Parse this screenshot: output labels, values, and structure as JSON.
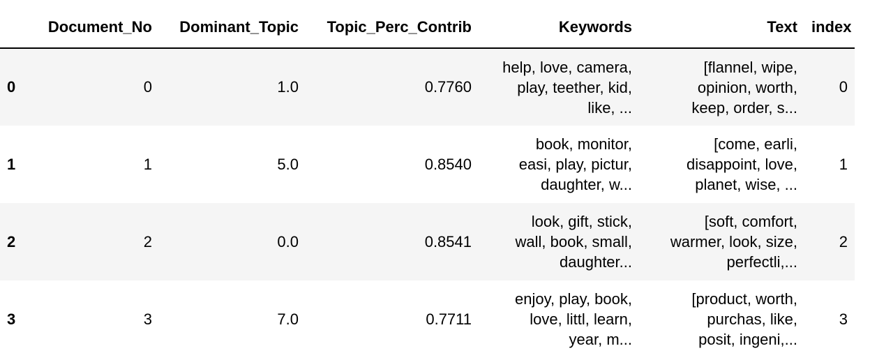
{
  "table": {
    "columns": [
      "",
      "Document_No",
      "Dominant_Topic",
      "Topic_Perc_Contrib",
      "Keywords",
      "Text",
      "index"
    ],
    "rows": [
      {
        "idx": "0",
        "document_no": "0",
        "dominant_topic": "1.0",
        "topic_perc_contrib": "0.7760",
        "keywords": [
          "help, love, camera,",
          "play, teether, kid,",
          "like, ..."
        ],
        "text": [
          "[flannel, wipe,",
          "opinion, worth,",
          "keep, order, s..."
        ],
        "index": "0"
      },
      {
        "idx": "1",
        "document_no": "1",
        "dominant_topic": "5.0",
        "topic_perc_contrib": "0.8540",
        "keywords": [
          "book, monitor,",
          "easi, play, pictur,",
          "daughter, w..."
        ],
        "text": [
          "[come, earli,",
          "disappoint, love,",
          "planet, wise, ..."
        ],
        "index": "1"
      },
      {
        "idx": "2",
        "document_no": "2",
        "dominant_topic": "0.0",
        "topic_perc_contrib": "0.8541",
        "keywords": [
          "look, gift, stick,",
          "wall, book, small,",
          "daughter..."
        ],
        "text": [
          "[soft, comfort,",
          "warmer, look, size,",
          "perfectli,..."
        ],
        "index": "2"
      },
      {
        "idx": "3",
        "document_no": "3",
        "dominant_topic": "7.0",
        "topic_perc_contrib": "0.7711",
        "keywords": [
          "enjoy, play, book,",
          "love, littl, learn,",
          "year, m..."
        ],
        "text": [
          "[product, worth,",
          "purchas, like,",
          "posit, ingeni,..."
        ],
        "index": "3"
      }
    ]
  }
}
